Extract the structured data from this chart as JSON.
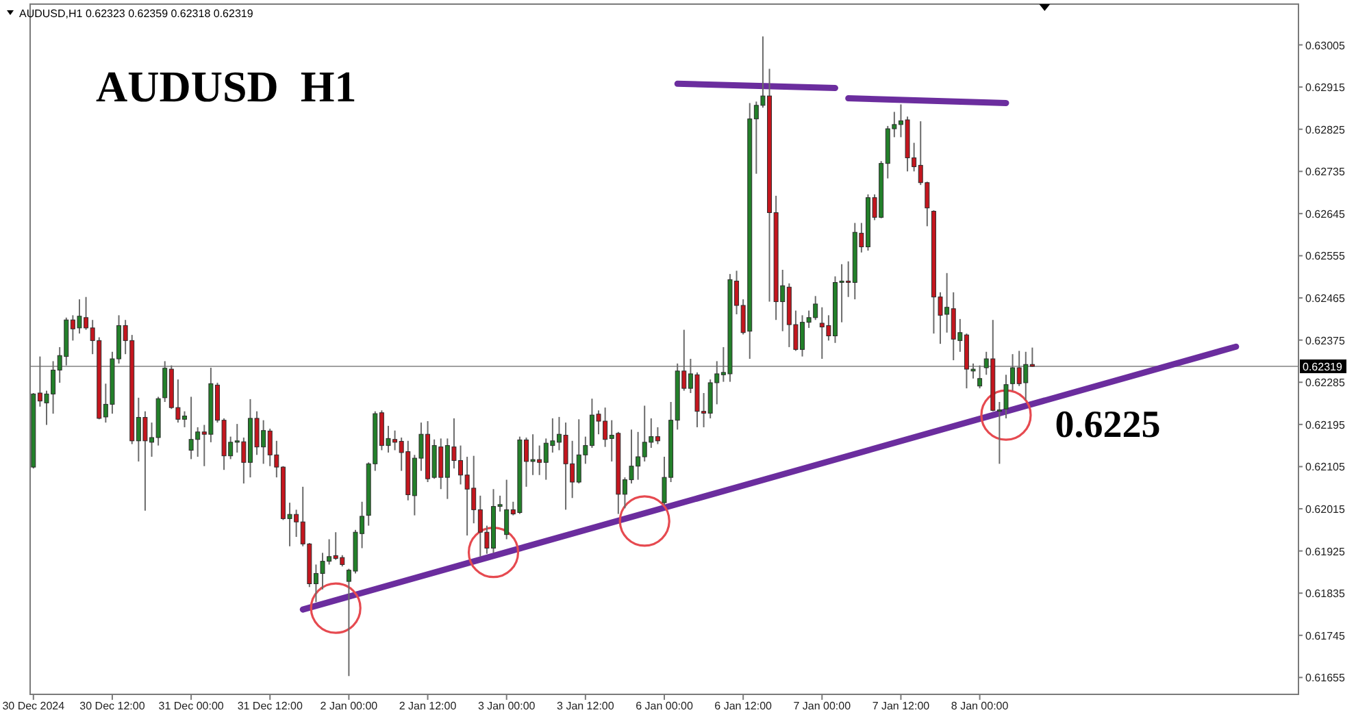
{
  "chart_data": {
    "type": "candlestick",
    "title": "AUDUSD H1",
    "subtitle": "AUDUSD,H1 0.62323 0.62359 0.62318 0.62319",
    "categories": [
      "30 Dec 2024",
      null,
      null,
      null,
      null,
      null,
      null,
      null,
      null,
      null,
      null,
      null,
      "30 Dec 12:00",
      null,
      null,
      null,
      null,
      null,
      null,
      null,
      null,
      null,
      null,
      null,
      "31 Dec 00:00",
      null,
      null,
      null,
      null,
      null,
      null,
      null,
      null,
      null,
      null,
      null,
      "31 Dec 12:00",
      null,
      null,
      null,
      null,
      null,
      null,
      null,
      null,
      null,
      null,
      null,
      "2 Jan 00:00",
      null,
      null,
      null,
      null,
      null,
      null,
      null,
      null,
      null,
      null,
      null,
      "2 Jan 12:00",
      null,
      null,
      null,
      null,
      null,
      null,
      null,
      null,
      null,
      null,
      null,
      "3 Jan 00:00",
      null,
      null,
      null,
      null,
      null,
      null,
      null,
      null,
      null,
      null,
      null,
      "3 Jan 12:00",
      null,
      null,
      null,
      null,
      null,
      null,
      null,
      null,
      null,
      null,
      null,
      "6 Jan 00:00",
      null,
      null,
      null,
      null,
      null,
      null,
      null,
      null,
      null,
      null,
      null,
      "6 Jan 12:00",
      null,
      null,
      null,
      null,
      null,
      null,
      null,
      null,
      null,
      null,
      null,
      "7 Jan 00:00",
      null,
      null,
      null,
      null,
      null,
      null,
      null,
      null,
      null,
      null,
      null,
      "7 Jan 12:00",
      null,
      null,
      null,
      null,
      null,
      null,
      null,
      null,
      null,
      null,
      null,
      "8 Jan 00:00",
      null,
      null,
      null,
      null,
      null,
      null,
      null,
      null,
      null,
      null,
      null,
      null,
      null,
      null,
      null,
      null,
      null,
      null,
      null,
      null,
      null,
      null,
      null,
      null,
      null,
      null,
      null,
      null,
      null,
      null,
      null,
      null,
      null,
      null,
      null,
      null,
      null,
      null,
      null,
      null,
      null,
      null,
      null,
      null,
      null,
      null,
      null,
      null
    ],
    "ohlc": [
      [
        0.62104,
        0.62262,
        0.62101,
        0.6226
      ],
      [
        0.62262,
        0.6234,
        0.62233,
        0.62245
      ],
      [
        0.62241,
        0.62267,
        0.62194,
        0.6226
      ],
      [
        0.6226,
        0.6233,
        0.62218,
        0.62311
      ],
      [
        0.62311,
        0.6236,
        0.62284,
        0.62342
      ],
      [
        0.6234,
        0.62423,
        0.62321,
        0.62418
      ],
      [
        0.62418,
        0.62428,
        0.62374,
        0.62399
      ],
      [
        0.62401,
        0.62462,
        0.62389,
        0.62426
      ],
      [
        0.62423,
        0.62467,
        0.62397,
        0.62401
      ],
      [
        0.62401,
        0.62418,
        0.62345,
        0.62374
      ],
      [
        0.62374,
        0.62381,
        0.62206,
        0.62208
      ],
      [
        0.62211,
        0.62282,
        0.62199,
        0.62238
      ],
      [
        0.62238,
        0.6235,
        0.62218,
        0.62335
      ],
      [
        0.62335,
        0.62428,
        0.62325,
        0.62406
      ],
      [
        0.62406,
        0.62418,
        0.62345,
        0.62374
      ],
      [
        0.62374,
        0.62386,
        0.62153,
        0.6216
      ],
      [
        0.6216,
        0.62252,
        0.62116,
        0.6221
      ],
      [
        0.6221,
        0.62223,
        0.62011,
        0.6216
      ],
      [
        0.62157,
        0.62199,
        0.62126,
        0.62167
      ],
      [
        0.62167,
        0.62254,
        0.6215,
        0.6225
      ],
      [
        0.62252,
        0.6233,
        0.62243,
        0.62315
      ],
      [
        0.62313,
        0.62321,
        0.62228,
        0.62231
      ],
      [
        0.62231,
        0.62291,
        0.62199,
        0.62206
      ],
      [
        0.62206,
        0.62223,
        0.62189,
        0.62213
      ],
      [
        0.6214,
        0.62254,
        0.62121,
        0.62163
      ],
      [
        0.62163,
        0.62189,
        0.62126,
        0.62179
      ],
      [
        0.62179,
        0.62194,
        0.62106,
        0.62174
      ],
      [
        0.62174,
        0.62316,
        0.62157,
        0.62282
      ],
      [
        0.62279,
        0.62284,
        0.62199,
        0.62204
      ],
      [
        0.62204,
        0.62208,
        0.62098,
        0.62128
      ],
      [
        0.62128,
        0.62169,
        0.62121,
        0.62157
      ],
      [
        0.62157,
        0.62196,
        0.62135,
        0.6216
      ],
      [
        0.62158,
        0.62167,
        0.62069,
        0.62114
      ],
      [
        0.62114,
        0.62249,
        0.62082,
        0.62208
      ],
      [
        0.62208,
        0.62223,
        0.6213,
        0.62147
      ],
      [
        0.62147,
        0.62204,
        0.62111,
        0.62182
      ],
      [
        0.62181,
        0.62186,
        0.62106,
        0.6213
      ],
      [
        0.6213,
        0.6216,
        0.62082,
        0.62104
      ],
      [
        0.62104,
        0.62106,
        0.61991,
        0.61994
      ],
      [
        0.61994,
        0.62028,
        0.61935,
        0.62003
      ],
      [
        0.62003,
        0.62013,
        0.61955,
        0.61987
      ],
      [
        0.61987,
        0.62062,
        0.61935,
        0.6194
      ],
      [
        0.6194,
        0.61942,
        0.61848,
        0.61855
      ],
      [
        0.61855,
        0.61896,
        0.61816,
        0.61877
      ],
      [
        0.61877,
        0.61921,
        0.61843,
        0.61903
      ],
      [
        0.61903,
        0.6195,
        0.61896,
        0.61913
      ],
      [
        0.61915,
        0.61965,
        0.61906,
        0.61909
      ],
      [
        0.61911,
        0.61916,
        0.61892,
        0.61896
      ],
      [
        0.6186,
        0.61887,
        0.61658,
        0.61884
      ],
      [
        0.61882,
        0.6197,
        0.61877,
        0.61965
      ],
      [
        0.61962,
        0.6203,
        0.61931,
        0.61999
      ],
      [
        0.62001,
        0.62114,
        0.61979,
        0.62111
      ],
      [
        0.62111,
        0.62223,
        0.62096,
        0.62218
      ],
      [
        0.6222,
        0.62225,
        0.6214,
        0.6215
      ],
      [
        0.6215,
        0.62192,
        0.62135,
        0.62165
      ],
      [
        0.62163,
        0.62182,
        0.6214,
        0.62157
      ],
      [
        0.62159,
        0.62167,
        0.62096,
        0.62135
      ],
      [
        0.62137,
        0.6216,
        0.62033,
        0.62045
      ],
      [
        0.62043,
        0.6213,
        0.62001,
        0.62123
      ],
      [
        0.62123,
        0.62199,
        0.62096,
        0.62174
      ],
      [
        0.62174,
        0.62202,
        0.62072,
        0.62079
      ],
      [
        0.62082,
        0.62163,
        0.62079,
        0.6215
      ],
      [
        0.62147,
        0.62165,
        0.62057,
        0.62082
      ],
      [
        0.62082,
        0.62165,
        0.62036,
        0.6215
      ],
      [
        0.62147,
        0.62208,
        0.62101,
        0.62118
      ],
      [
        0.62118,
        0.6215,
        0.62067,
        0.62087
      ],
      [
        0.62087,
        0.62126,
        0.61958,
        0.62057
      ],
      [
        0.62059,
        0.62128,
        0.61984,
        0.62013
      ],
      [
        0.62013,
        0.62043,
        0.61913,
        0.61965
      ],
      [
        0.61965,
        0.61979,
        0.61919,
        0.61931
      ],
      [
        0.61931,
        0.62057,
        0.61921,
        0.6202
      ],
      [
        0.6202,
        0.62043,
        0.62009,
        0.62024
      ],
      [
        0.6196,
        0.62077,
        0.6195,
        0.62013
      ],
      [
        0.62013,
        0.6203,
        0.62001,
        0.62004
      ],
      [
        0.62007,
        0.62169,
        0.62004,
        0.62162
      ],
      [
        0.62162,
        0.62167,
        0.62062,
        0.62116
      ],
      [
        0.62116,
        0.62174,
        0.62087,
        0.6212
      ],
      [
        0.6212,
        0.6215,
        0.62087,
        0.62114
      ],
      [
        0.62114,
        0.62165,
        0.62077,
        0.62155
      ],
      [
        0.6215,
        0.62208,
        0.62135,
        0.6216
      ],
      [
        0.62157,
        0.62211,
        0.6214,
        0.62174
      ],
      [
        0.62172,
        0.62199,
        0.62013,
        0.62111
      ],
      [
        0.62111,
        0.6216,
        0.62038,
        0.62072
      ],
      [
        0.62072,
        0.62206,
        0.62069,
        0.6213
      ],
      [
        0.6213,
        0.62169,
        0.62111,
        0.6215
      ],
      [
        0.6215,
        0.6225,
        0.62145,
        0.62215
      ],
      [
        0.62217,
        0.62225,
        0.62174,
        0.62202
      ],
      [
        0.62202,
        0.62231,
        0.62147,
        0.62163
      ],
      [
        0.62165,
        0.62204,
        0.62116,
        0.62172
      ],
      [
        0.62176,
        0.62179,
        0.62004,
        0.62046
      ],
      [
        0.62046,
        0.62082,
        0.62016,
        0.62077
      ],
      [
        0.62077,
        0.62184,
        0.62069,
        0.62106
      ],
      [
        0.62106,
        0.62179,
        0.62077,
        0.62126
      ],
      [
        0.62126,
        0.62235,
        0.62116,
        0.62157
      ],
      [
        0.62157,
        0.62208,
        0.62145,
        0.62169
      ],
      [
        0.62169,
        0.62189,
        0.62153,
        0.6216
      ],
      [
        0.62028,
        0.62126,
        0.62023,
        0.62082
      ],
      [
        0.62082,
        0.62243,
        0.62072,
        0.62204
      ],
      [
        0.62204,
        0.62325,
        0.62184,
        0.62309
      ],
      [
        0.62309,
        0.62397,
        0.62267,
        0.62272
      ],
      [
        0.62272,
        0.62335,
        0.62262,
        0.62303
      ],
      [
        0.62301,
        0.62306,
        0.62189,
        0.62223
      ],
      [
        0.62223,
        0.62262,
        0.62189,
        0.62219
      ],
      [
        0.62219,
        0.62291,
        0.62208,
        0.62284
      ],
      [
        0.62284,
        0.6233,
        0.62238,
        0.62303
      ],
      [
        0.62301,
        0.6236,
        0.62286,
        0.62306
      ],
      [
        0.62303,
        0.62516,
        0.62286,
        0.62504
      ],
      [
        0.62501,
        0.62523,
        0.6243,
        0.62449
      ],
      [
        0.62449,
        0.62462,
        0.62387,
        0.62391
      ],
      [
        0.62394,
        0.62881,
        0.62335,
        0.62847
      ],
      [
        0.62847,
        0.62884,
        0.6273,
        0.62876
      ],
      [
        0.62876,
        0.63023,
        0.62871,
        0.62896
      ],
      [
        0.62896,
        0.62954,
        0.62457,
        0.62647
      ],
      [
        0.62647,
        0.62683,
        0.62418,
        0.62457
      ],
      [
        0.62457,
        0.62525,
        0.62394,
        0.62491
      ],
      [
        0.62488,
        0.62496,
        0.6236,
        0.62408
      ],
      [
        0.62408,
        0.62438,
        0.62352,
        0.62355
      ],
      [
        0.62355,
        0.62428,
        0.6234,
        0.62413
      ],
      [
        0.62413,
        0.62438,
        0.62401,
        0.62423
      ],
      [
        0.62423,
        0.62469,
        0.62418,
        0.62452
      ],
      [
        0.62411,
        0.62445,
        0.62335,
        0.62403
      ],
      [
        0.62406,
        0.62428,
        0.62374,
        0.62384
      ],
      [
        0.62384,
        0.62511,
        0.62369,
        0.62498
      ],
      [
        0.62498,
        0.62537,
        0.62413,
        0.62501
      ],
      [
        0.62501,
        0.62543,
        0.62467,
        0.62498
      ],
      [
        0.62498,
        0.62625,
        0.62462,
        0.62605
      ],
      [
        0.62603,
        0.62625,
        0.62562,
        0.62574
      ],
      [
        0.62574,
        0.62686,
        0.62566,
        0.62679
      ],
      [
        0.62679,
        0.62686,
        0.62631,
        0.62637
      ],
      [
        0.62637,
        0.62757,
        0.62635,
        0.62752
      ],
      [
        0.62752,
        0.62832,
        0.6272,
        0.62826
      ],
      [
        0.62826,
        0.62862,
        0.62808,
        0.62835
      ],
      [
        0.62835,
        0.62878,
        0.62808,
        0.62843
      ],
      [
        0.62845,
        0.62852,
        0.62735,
        0.62764
      ],
      [
        0.62764,
        0.62796,
        0.62735,
        0.62745
      ],
      [
        0.62748,
        0.62842,
        0.62706,
        0.62711
      ],
      [
        0.62711,
        0.62713,
        0.62618,
        0.62657
      ],
      [
        0.6265,
        0.62652,
        0.62389,
        0.62467
      ],
      [
        0.62467,
        0.62477,
        0.62367,
        0.62428
      ],
      [
        0.6243,
        0.62518,
        0.62391,
        0.62445
      ],
      [
        0.62442,
        0.62477,
        0.62332,
        0.62377
      ],
      [
        0.62374,
        0.6242,
        0.6235,
        0.62391
      ],
      [
        0.62386,
        0.62389,
        0.62272,
        0.62313
      ],
      [
        0.62309,
        0.62325,
        0.62293,
        0.62313
      ],
      [
        0.62277,
        0.62321,
        0.62272,
        0.62293
      ],
      [
        0.62316,
        0.6235,
        0.62301,
        0.62335
      ],
      [
        0.62335,
        0.62418,
        0.62223,
        0.62225
      ],
      [
        0.62225,
        0.62243,
        0.62111,
        0.62226
      ],
      [
        0.62228,
        0.62301,
        0.62208,
        0.6228
      ],
      [
        0.62282,
        0.62345,
        0.62267,
        0.62316
      ],
      [
        0.62316,
        0.62352,
        0.62277,
        0.62282
      ],
      [
        0.62284,
        0.6235,
        0.62247,
        0.62323
      ],
      [
        0.62323,
        0.62359,
        0.62318,
        0.62319
      ],
      null,
      null,
      null,
      null,
      null,
      null,
      null,
      null,
      null,
      null,
      null,
      null,
      null,
      null,
      null,
      null,
      null,
      null,
      null,
      null,
      null,
      null,
      null,
      null,
      null,
      null,
      null,
      null,
      null,
      null,
      null,
      null,
      null,
      null,
      null,
      null,
      null,
      null,
      null,
      null
    ],
    "series": [
      {
        "type": "line",
        "color": "#6b2d9e",
        "values": [
          null,
          null,
          null,
          null,
          null,
          null,
          null,
          null,
          null,
          null,
          null,
          null,
          null,
          null,
          null,
          null,
          null,
          null,
          null,
          null,
          null,
          null,
          null,
          null,
          null,
          null,
          null,
          null,
          null,
          null,
          null,
          null,
          null,
          null,
          null,
          null,
          null,
          null,
          null,
          null,
          null,
          0.618,
          null,
          null,
          null,
          null,
          null,
          null,
          null,
          null,
          null,
          null,
          null,
          null,
          null,
          null,
          null,
          null,
          null,
          null,
          null,
          null,
          null,
          null,
          null,
          null,
          null,
          null,
          null,
          null,
          null,
          null,
          null,
          null,
          null,
          null,
          null,
          null,
          null,
          null,
          null,
          null,
          null,
          null,
          null,
          null,
          null,
          null,
          null,
          null,
          null,
          null,
          null,
          null,
          null,
          null,
          null,
          null,
          null,
          null,
          null,
          null,
          null,
          null,
          null,
          null,
          null,
          null,
          null,
          null,
          null,
          null,
          null,
          null,
          null,
          null,
          null,
          null,
          null,
          null,
          null,
          null,
          null,
          null,
          null,
          null,
          null,
          null,
          null,
          null,
          null,
          null,
          null,
          null,
          null,
          null,
          null,
          null,
          null,
          null,
          null,
          null,
          null,
          null,
          null,
          null,
          null,
          null,
          null,
          null,
          null,
          null,
          null,
          null,
          null,
          null,
          null,
          null,
          null,
          null,
          null,
          null,
          null,
          null,
          null,
          null,
          null,
          null,
          null,
          null,
          null,
          null,
          null,
          null,
          null,
          null,
          null,
          null,
          null,
          null,
          null,
          null,
          null,
          0.62361,
          null,
          null,
          null,
          null,
          null,
          null,
          null,
          null,
          null
        ]
      },
      {
        "type": "line",
        "color": "#6b2d9e",
        "values": [
          null,
          null,
          null,
          null,
          null,
          null,
          null,
          null,
          null,
          null,
          null,
          null,
          null,
          null,
          null,
          null,
          null,
          null,
          null,
          null,
          null,
          null,
          null,
          null,
          null,
          null,
          null,
          null,
          null,
          null,
          null,
          null,
          null,
          null,
          null,
          null,
          null,
          null,
          null,
          null,
          null,
          null,
          null,
          null,
          null,
          null,
          null,
          null,
          null,
          null,
          null,
          null,
          null,
          null,
          null,
          null,
          null,
          null,
          null,
          null,
          null,
          null,
          null,
          null,
          null,
          null,
          null,
          null,
          null,
          null,
          null,
          null,
          null,
          null,
          null,
          null,
          null,
          null,
          null,
          null,
          null,
          null,
          null,
          null,
          null,
          null,
          null,
          null,
          null,
          null,
          null,
          null,
          null,
          null,
          null,
          null,
          null,
          null,
          0.62922,
          null,
          null,
          null,
          null,
          null,
          null,
          null,
          null,
          null,
          null,
          null,
          null,
          null,
          null,
          null,
          null,
          null,
          null,
          null,
          null,
          null,
          null,
          null,
          0.62913,
          null,
          null,
          null,
          null,
          null,
          null,
          null,
          null,
          null,
          null,
          null,
          null,
          null,
          null,
          null,
          null,
          null,
          null,
          null,
          null,
          null,
          null,
          null,
          null,
          null,
          null,
          null,
          null,
          null,
          null,
          null,
          null,
          null,
          null,
          null,
          null,
          null,
          null,
          null,
          null,
          null,
          null,
          null,
          null,
          null,
          null,
          null,
          null,
          null,
          null,
          null,
          null,
          null,
          null,
          null,
          null,
          null,
          null,
          null,
          null,
          null,
          null,
          null,
          null,
          null,
          null,
          null,
          null,
          null,
          null
        ]
      },
      {
        "type": "line",
        "color": "#6b2d9e",
        "values": [
          null,
          null,
          null,
          null,
          null,
          null,
          null,
          null,
          null,
          null,
          null,
          null,
          null,
          null,
          null,
          null,
          null,
          null,
          null,
          null,
          null,
          null,
          null,
          null,
          null,
          null,
          null,
          null,
          null,
          null,
          null,
          null,
          null,
          null,
          null,
          null,
          null,
          null,
          null,
          null,
          null,
          null,
          null,
          null,
          null,
          null,
          null,
          null,
          null,
          null,
          null,
          null,
          null,
          null,
          null,
          null,
          null,
          null,
          null,
          null,
          null,
          null,
          null,
          null,
          null,
          null,
          null,
          null,
          null,
          null,
          null,
          null,
          null,
          null,
          null,
          null,
          null,
          null,
          null,
          null,
          null,
          null,
          null,
          null,
          null,
          null,
          null,
          null,
          null,
          null,
          null,
          null,
          null,
          null,
          null,
          null,
          null,
          null,
          null,
          null,
          null,
          null,
          null,
          null,
          null,
          null,
          null,
          null,
          null,
          null,
          null,
          null,
          null,
          null,
          null,
          null,
          null,
          null,
          null,
          null,
          null,
          null,
          null,
          null,
          0.62891,
          null,
          null,
          null,
          null,
          null,
          null,
          null,
          null,
          null,
          null,
          null,
          null,
          null,
          null,
          null,
          null,
          null,
          null,
          null,
          null,
          null,
          null,
          null,
          0.62881,
          null,
          null,
          null,
          null,
          null,
          null,
          null,
          null,
          null,
          null,
          null,
          null,
          null,
          null,
          null,
          null,
          null,
          null,
          null,
          null,
          null,
          null,
          null,
          null,
          null,
          null,
          null,
          null,
          null,
          null,
          null,
          null,
          null,
          null,
          null,
          null,
          null,
          null,
          null,
          null,
          null,
          null,
          null,
          null
        ]
      },
      {
        "type": "scatter",
        "color": "#e64a50",
        "marker": "circle",
        "values": [
          null,
          null,
          null,
          null,
          null,
          null,
          null,
          null,
          null,
          null,
          null,
          null,
          null,
          null,
          null,
          null,
          null,
          null,
          null,
          null,
          null,
          null,
          null,
          null,
          null,
          null,
          null,
          null,
          null,
          null,
          null,
          null,
          null,
          null,
          null,
          null,
          null,
          null,
          null,
          null,
          null,
          null,
          null,
          null,
          null,
          null,
          0.61803,
          null,
          null,
          null,
          null,
          null,
          null,
          null,
          null,
          null,
          null,
          null,
          null,
          null,
          null,
          null,
          null,
          null,
          null,
          null,
          null,
          null,
          null,
          null,
          0.61922,
          null,
          null,
          null,
          null,
          null,
          null,
          null,
          null,
          null,
          null,
          null,
          null,
          null,
          null,
          null,
          null,
          null,
          null,
          null,
          null,
          null,
          null,
          0.61989,
          null,
          null,
          null,
          null,
          null,
          null,
          null,
          null,
          null,
          null,
          null,
          null,
          null,
          null,
          null,
          null,
          null,
          null,
          null,
          null,
          null,
          null,
          null,
          null,
          null,
          null,
          null,
          null,
          null,
          null,
          null,
          null,
          null,
          null,
          null,
          null,
          null,
          null,
          null,
          null,
          null,
          null,
          null,
          null,
          null,
          null,
          null,
          null,
          null,
          null,
          null,
          null,
          null,
          null,
          0.62215,
          null,
          null,
          null,
          null,
          null,
          null,
          null,
          null,
          null,
          null,
          null,
          null,
          null,
          null,
          null,
          null,
          null,
          null,
          null,
          null,
          null,
          null,
          null,
          null,
          null,
          null,
          null,
          null,
          null,
          null,
          null,
          null,
          null,
          null,
          null,
          null,
          null,
          null,
          null,
          null,
          null,
          null,
          null,
          null
        ]
      }
    ],
    "ylim": [
      0.61619,
      0.63092
    ],
    "yticks": [
      0.61655,
      0.61745,
      0.61835,
      0.61925,
      0.62015,
      0.62105,
      0.62195,
      0.62285,
      0.62375,
      0.62465,
      0.62555,
      0.62645,
      0.62735,
      0.62825,
      0.62915,
      0.63005
    ],
    "ref_lines": [
      {
        "axis": "y",
        "value": 0.62319,
        "label": "0.62319",
        "color": "#a0a0a0"
      }
    ],
    "annotations": [
      "0.6225"
    ]
  }
}
